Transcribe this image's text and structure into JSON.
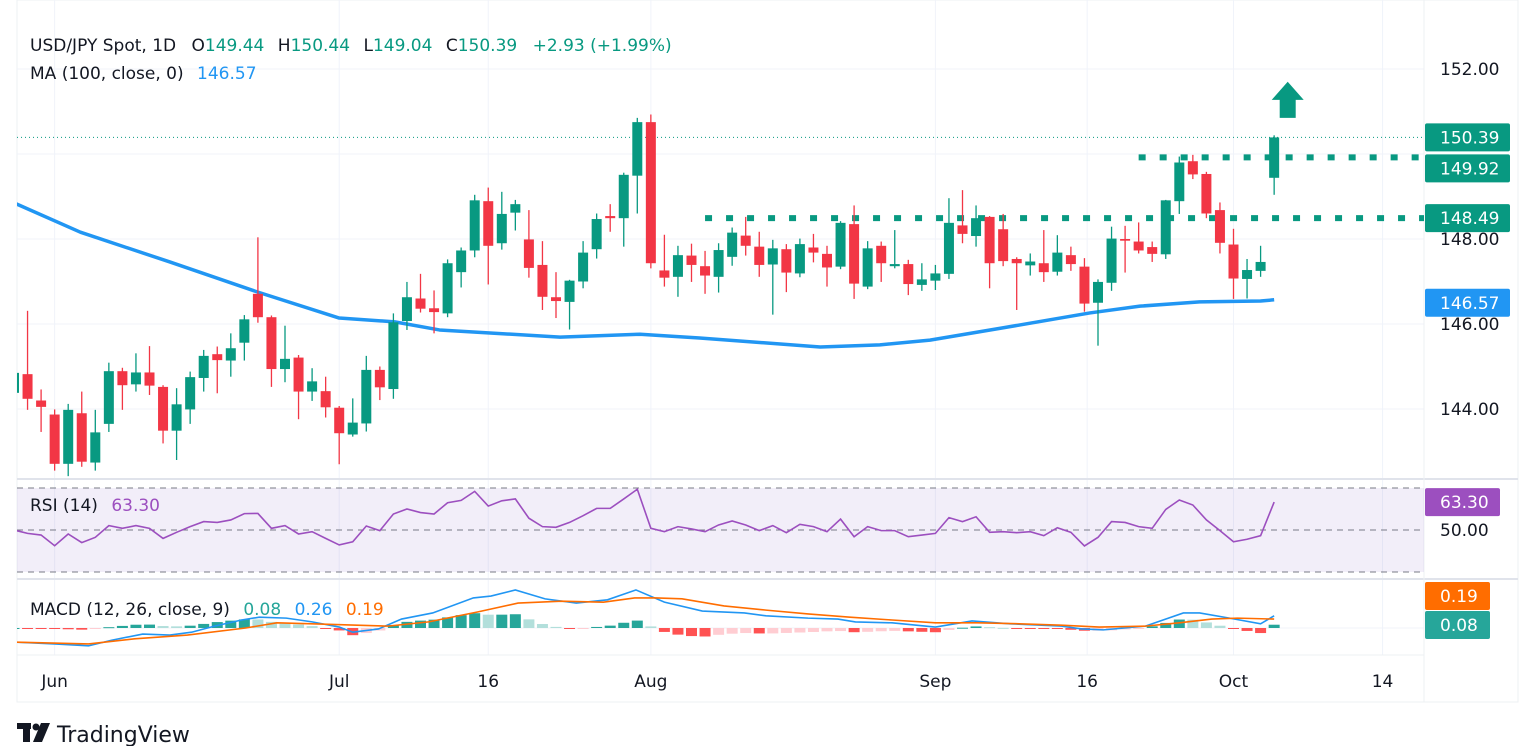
{
  "header": {
    "symbol": "USD/JPY Spot, 1D",
    "o_label": "O",
    "o_value": "149.44",
    "h_label": "H",
    "h_value": "150.44",
    "l_label": "L",
    "l_value": "149.04",
    "c_label": "C",
    "c_value": "150.39",
    "change": "+2.93 (+1.99%)",
    "ma_label": "MA (100, close, 0)",
    "ma_value": "146.57"
  },
  "rsi_legend": {
    "label": "RSI (14)",
    "value": "63.30"
  },
  "macd_legend": {
    "label": "MACD (12, 26, close, 9)",
    "hist": "0.08",
    "macd": "0.26",
    "signal": "0.19"
  },
  "branding": {
    "logo_text": "TradingView"
  },
  "colors": {
    "up": "#089981",
    "down": "#F23645",
    "ma": "#2196F3",
    "rsi": "#9C4FBF",
    "macd": "#2196F3",
    "signal": "#FF6D00",
    "hist_up_strong": "#26A69A",
    "hist_up_weak": "#B2DFDB",
    "hist_down_strong": "#FF5252",
    "hist_down_weak": "#FFCDD2",
    "level": "#089981"
  },
  "chart_data": [
    {
      "type": "candlestick",
      "title": "USD/JPY Spot, 1D",
      "x_ticks": [
        {
          "label": "Jun",
          "index": 3
        },
        {
          "label": "Jul",
          "index": 24
        },
        {
          "label": "16",
          "index": 35
        },
        {
          "label": "Aug",
          "index": 47
        },
        {
          "label": "Sep",
          "index": 68
        },
        {
          "label": "16",
          "index": 79.2
        },
        {
          "label": "Oct",
          "index": 90
        },
        {
          "label": "14",
          "index": 101
        }
      ],
      "y_ticks": [
        "144.00",
        "146.00",
        "148.00",
        "152.00"
      ],
      "y_grid": [
        144,
        146,
        148,
        150,
        152
      ],
      "ylim": [
        142.2,
        153.6
      ],
      "grid": true,
      "ohlc": [
        [
          144.38,
          145.0,
          144.3,
          144.85
        ],
        [
          144.82,
          146.31,
          143.98,
          144.24
        ],
        [
          144.2,
          144.46,
          143.46,
          144.05
        ],
        [
          143.87,
          143.99,
          142.55,
          142.71
        ],
        [
          142.71,
          144.12,
          142.42,
          143.98
        ],
        [
          143.9,
          144.41,
          142.64,
          142.76
        ],
        [
          142.74,
          143.98,
          142.55,
          143.45
        ],
        [
          143.65,
          145.09,
          143.46,
          144.89
        ],
        [
          144.89,
          144.97,
          143.98,
          144.56
        ],
        [
          144.58,
          145.31,
          144.41,
          144.86
        ],
        [
          144.86,
          145.48,
          144.33,
          144.55
        ],
        [
          144.52,
          144.56,
          143.19,
          143.49
        ],
        [
          143.49,
          144.49,
          142.8,
          144.11
        ],
        [
          143.99,
          144.88,
          143.65,
          144.75
        ],
        [
          144.73,
          145.39,
          144.41,
          145.25
        ],
        [
          145.29,
          145.47,
          144.37,
          145.15
        ],
        [
          145.14,
          145.78,
          144.76,
          145.43
        ],
        [
          145.56,
          146.21,
          145.14,
          146.11
        ],
        [
          146.71,
          148.04,
          146.03,
          146.16
        ],
        [
          146.16,
          146.2,
          144.52,
          144.94
        ],
        [
          144.94,
          145.96,
          144.63,
          145.18
        ],
        [
          145.21,
          145.27,
          143.76,
          144.41
        ],
        [
          144.41,
          144.96,
          144.19,
          144.65
        ],
        [
          144.42,
          144.76,
          143.8,
          144.04
        ],
        [
          144.03,
          144.07,
          142.7,
          143.43
        ],
        [
          143.4,
          144.25,
          143.35,
          143.68
        ],
        [
          143.66,
          145.25,
          143.47,
          144.92
        ],
        [
          144.92,
          145.0,
          144.21,
          144.51
        ],
        [
          144.47,
          146.25,
          144.24,
          146.04
        ],
        [
          146.07,
          146.99,
          145.86,
          146.63
        ],
        [
          146.6,
          147.18,
          146.27,
          146.36
        ],
        [
          146.37,
          146.79,
          145.78,
          146.28
        ],
        [
          146.25,
          147.52,
          146.16,
          147.43
        ],
        [
          147.22,
          147.8,
          146.86,
          147.73
        ],
        [
          147.73,
          149.04,
          147.57,
          148.91
        ],
        [
          148.89,
          149.21,
          146.93,
          147.84
        ],
        [
          147.9,
          149.11,
          147.75,
          148.59
        ],
        [
          148.62,
          148.92,
          148.2,
          148.82
        ],
        [
          147.99,
          148.68,
          147.09,
          147.32
        ],
        [
          147.39,
          147.95,
          146.33,
          146.64
        ],
        [
          146.63,
          147.22,
          146.14,
          146.54
        ],
        [
          146.52,
          147.04,
          145.87,
          147.02
        ],
        [
          147.0,
          147.95,
          146.84,
          147.68
        ],
        [
          147.76,
          148.6,
          147.54,
          148.47
        ],
        [
          148.54,
          148.82,
          148.17,
          148.49
        ],
        [
          148.49,
          149.56,
          147.82,
          149.51
        ],
        [
          149.49,
          150.85,
          148.6,
          150.75
        ],
        [
          150.75,
          150.93,
          147.31,
          147.43
        ],
        [
          147.26,
          148.1,
          146.88,
          147.09
        ],
        [
          147.11,
          147.84,
          146.64,
          147.62
        ],
        [
          147.61,
          147.89,
          146.99,
          147.39
        ],
        [
          147.36,
          147.72,
          146.71,
          147.14
        ],
        [
          147.11,
          147.9,
          146.74,
          147.74
        ],
        [
          147.58,
          148.27,
          147.37,
          148.15
        ],
        [
          148.08,
          148.52,
          147.61,
          147.84
        ],
        [
          147.82,
          148.17,
          147.11,
          147.39
        ],
        [
          147.4,
          147.98,
          146.22,
          147.78
        ],
        [
          147.76,
          147.88,
          146.75,
          147.21
        ],
        [
          147.19,
          148.01,
          147.1,
          147.88
        ],
        [
          147.8,
          148.12,
          147.45,
          147.68
        ],
        [
          147.65,
          147.84,
          146.88,
          147.33
        ],
        [
          147.35,
          148.42,
          147.29,
          148.38
        ],
        [
          148.35,
          148.79,
          146.59,
          146.95
        ],
        [
          146.88,
          147.95,
          146.82,
          147.78
        ],
        [
          147.84,
          147.94,
          146.99,
          147.43
        ],
        [
          147.36,
          148.21,
          147.31,
          147.41
        ],
        [
          147.41,
          147.51,
          146.68,
          146.94
        ],
        [
          146.92,
          147.43,
          146.78,
          147.05
        ],
        [
          147.02,
          147.39,
          146.8,
          147.19
        ],
        [
          147.18,
          148.96,
          147.06,
          148.38
        ],
        [
          148.32,
          149.15,
          147.9,
          148.12
        ],
        [
          148.07,
          148.79,
          147.82,
          148.49
        ],
        [
          148.52,
          148.54,
          146.84,
          147.43
        ],
        [
          148.23,
          148.59,
          147.36,
          147.48
        ],
        [
          147.53,
          147.57,
          146.33,
          147.43
        ],
        [
          147.38,
          147.66,
          147.14,
          147.47
        ],
        [
          147.43,
          148.21,
          146.99,
          147.22
        ],
        [
          147.23,
          148.09,
          147.14,
          147.68
        ],
        [
          147.62,
          147.82,
          147.25,
          147.41
        ],
        [
          147.35,
          147.55,
          146.29,
          146.48
        ],
        [
          146.5,
          147.05,
          145.49,
          146.99
        ],
        [
          146.97,
          148.29,
          146.78,
          148.01
        ],
        [
          148.0,
          148.31,
          147.21,
          147.96
        ],
        [
          147.94,
          148.39,
          147.66,
          147.73
        ],
        [
          147.81,
          147.94,
          147.46,
          147.65
        ],
        [
          147.64,
          148.92,
          147.53,
          148.91
        ],
        [
          148.89,
          149.94,
          148.59,
          149.8
        ],
        [
          149.83,
          149.98,
          149.41,
          149.52
        ],
        [
          149.53,
          149.58,
          148.49,
          148.6
        ],
        [
          148.68,
          148.86,
          147.66,
          147.91
        ],
        [
          147.87,
          148.24,
          146.59,
          147.07
        ],
        [
          147.06,
          147.53,
          146.6,
          147.27
        ],
        [
          147.25,
          147.84,
          147.11,
          147.46
        ],
        [
          149.44,
          150.44,
          149.04,
          150.39
        ]
      ],
      "ma100": [
        [
          0,
          148.85
        ],
        [
          4.9,
          148.16
        ],
        [
          11.5,
          147.46
        ],
        [
          18,
          146.75
        ],
        [
          24,
          146.14
        ],
        [
          28.1,
          146.05
        ],
        [
          31.4,
          145.86
        ],
        [
          40.3,
          145.69
        ],
        [
          46.2,
          145.76
        ],
        [
          50.6,
          145.67
        ],
        [
          59.5,
          145.46
        ],
        [
          63.9,
          145.51
        ],
        [
          67.6,
          145.62
        ],
        [
          72.8,
          145.9
        ],
        [
          79.4,
          146.26
        ],
        [
          83.1,
          146.42
        ],
        [
          87.5,
          146.52
        ],
        [
          92,
          146.54
        ],
        [
          93,
          146.57
        ]
      ],
      "levels": [
        {
          "value": 149.92,
          "label": "149.92",
          "from_index": 83
        },
        {
          "value": 148.49,
          "label": "148.49",
          "from_index": 51
        }
      ],
      "last_price": {
        "value": 150.39,
        "label": "150.39"
      },
      "ma_last": {
        "value": 146.57,
        "label": "146.57"
      },
      "annotation": {
        "icon": "arrow-up-icon",
        "index": 94,
        "price_top": 151.7,
        "price_bottom": 150.85
      }
    },
    {
      "type": "line",
      "title": "RSI (14)",
      "ylim": [
        25,
        73
      ],
      "bands": [
        30,
        50,
        70
      ],
      "y_ticks": [
        "50.00"
      ],
      "last_label": "63.30",
      "values": [
        50.0,
        48.4,
        47.6,
        42.5,
        48.1,
        44.0,
        46.5,
        52.1,
        50.8,
        52.1,
        50.8,
        46.0,
        48.9,
        51.6,
        54.0,
        53.6,
        54.8,
        57.8,
        57.9,
        50.8,
        52.1,
        48.1,
        49.2,
        46.0,
        42.9,
        44.4,
        51.9,
        49.7,
        57.6,
        60.0,
        58.3,
        57.6,
        63.0,
        64.1,
        68.4,
        61.4,
        63.9,
        64.8,
        55.6,
        51.6,
        51.3,
        53.6,
        56.8,
        60.3,
        60.3,
        64.8,
        69.4,
        50.8,
        49.2,
        51.6,
        50.5,
        49.2,
        52.4,
        54.3,
        52.4,
        49.7,
        52.1,
        48.7,
        52.7,
        51.6,
        49.2,
        55.2,
        46.8,
        51.6,
        49.7,
        49.7,
        46.8,
        47.6,
        48.4,
        55.9,
        54.0,
        56.3,
        48.9,
        49.2,
        48.7,
        49.2,
        47.3,
        51.1,
        48.9,
        42.4,
        46.5,
        54.0,
        53.6,
        51.6,
        50.8,
        59.8,
        64.3,
        61.9,
        54.8,
        49.7,
        44.4,
        45.6,
        47.3,
        63.3
      ]
    },
    {
      "type": "line",
      "title": "MACD (12, 26, close, 9)",
      "ylim": [
        -0.55,
        1.0
      ],
      "signal_label": "0.19",
      "hist_label": "0.08",
      "macd": [
        [
          0,
          -0.3
        ],
        [
          3,
          -0.34
        ],
        [
          5.5,
          -0.38
        ],
        [
          7.2,
          -0.26
        ],
        [
          9.5,
          -0.13
        ],
        [
          11.5,
          -0.15
        ],
        [
          13.1,
          -0.09
        ],
        [
          14.8,
          0.04
        ],
        [
          16.8,
          0.17
        ],
        [
          18.1,
          0.23
        ],
        [
          20.1,
          0.21
        ],
        [
          22,
          0.13
        ],
        [
          24,
          0.02
        ],
        [
          25,
          -0.09
        ],
        [
          26.9,
          -0.02
        ],
        [
          28.6,
          0.19
        ],
        [
          30.9,
          0.32
        ],
        [
          33.9,
          0.64
        ],
        [
          35.2,
          0.68
        ],
        [
          37,
          0.81
        ],
        [
          39.2,
          0.62
        ],
        [
          41.5,
          0.53
        ],
        [
          43.8,
          0.6
        ],
        [
          45.9,
          0.81
        ],
        [
          48,
          0.55
        ],
        [
          50.8,
          0.36
        ],
        [
          53.9,
          0.32
        ],
        [
          55.5,
          0.26
        ],
        [
          58.6,
          0.21
        ],
        [
          60.8,
          0.19
        ],
        [
          62.1,
          0.13
        ],
        [
          64.8,
          0.11
        ],
        [
          68,
          0.02
        ],
        [
          70.7,
          0.15
        ],
        [
          73.5,
          0.09
        ],
        [
          77.3,
          0.04
        ],
        [
          78.8,
          -0.02
        ],
        [
          80.4,
          -0.04
        ],
        [
          83.5,
          0.04
        ],
        [
          86.3,
          0.32
        ],
        [
          87.5,
          0.32
        ],
        [
          89.7,
          0.21
        ],
        [
          92,
          0.09
        ],
        [
          93,
          0.26
        ]
      ],
      "signal": [
        [
          0,
          -0.3
        ],
        [
          5.5,
          -0.34
        ],
        [
          8.9,
          -0.23
        ],
        [
          12.8,
          -0.15
        ],
        [
          17.1,
          0
        ],
        [
          19.4,
          0.11
        ],
        [
          22,
          0.09
        ],
        [
          25.3,
          0.06
        ],
        [
          27.6,
          0.04
        ],
        [
          30.6,
          0.13
        ],
        [
          34.2,
          0.34
        ],
        [
          37.2,
          0.53
        ],
        [
          40.4,
          0.57
        ],
        [
          43.5,
          0.55
        ],
        [
          45.8,
          0.64
        ],
        [
          47.4,
          0.64
        ],
        [
          49.3,
          0.62
        ],
        [
          52.4,
          0.47
        ],
        [
          55.5,
          0.38
        ],
        [
          58.6,
          0.3
        ],
        [
          61.7,
          0.23
        ],
        [
          64.8,
          0.17
        ],
        [
          68,
          0.11
        ],
        [
          71.1,
          0.11
        ],
        [
          74.2,
          0.09
        ],
        [
          77.3,
          0.06
        ],
        [
          80.1,
          0.02
        ],
        [
          83.5,
          0.04
        ],
        [
          86,
          0.11
        ],
        [
          88.4,
          0.19
        ],
        [
          90.3,
          0.21
        ],
        [
          93,
          0.19
        ]
      ]
    }
  ]
}
